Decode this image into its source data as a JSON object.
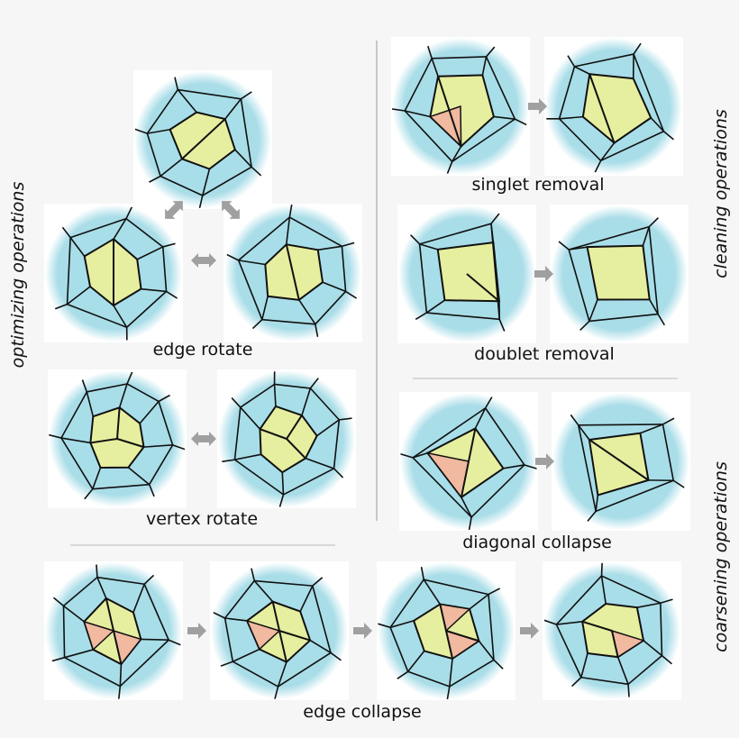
{
  "sections": {
    "optimizing": "optimizing operations",
    "cleaning": "cleaning operations",
    "coarsening": "coarsening operations"
  },
  "operations": {
    "edge_rotate": "edge rotate",
    "vertex_rotate": "vertex rotate",
    "singlet_removal": "singlet removal",
    "doublet_removal": "doublet removal",
    "diagonal_collapse": "diagonal collapse",
    "edge_collapse": "edge collapse"
  }
}
